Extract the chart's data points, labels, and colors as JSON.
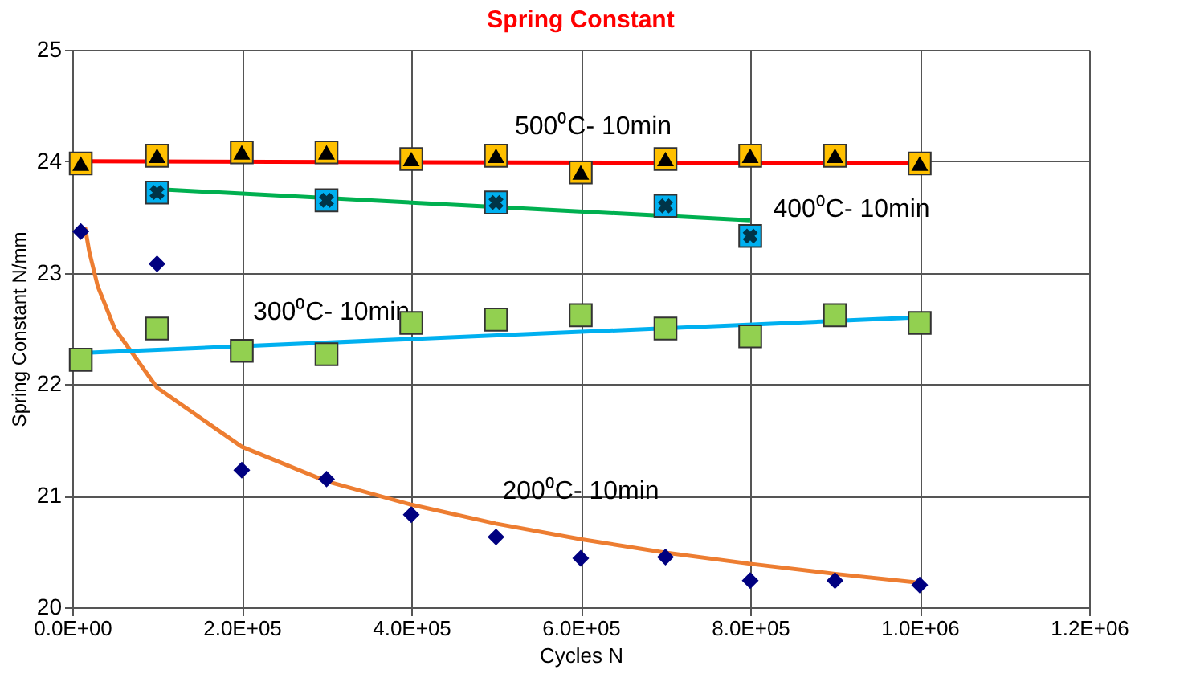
{
  "chart_data": {
    "type": "scatter",
    "title": "Spring Constant",
    "xlabel": "Cycles N",
    "ylabel": "Spring Constant N/mm",
    "xlim": [
      0,
      1200000
    ],
    "ylim": [
      20,
      25
    ],
    "xticks": [
      {
        "value": 0,
        "label": "0.0E+00"
      },
      {
        "value": 200000,
        "label": "2.0E+05"
      },
      {
        "value": 400000,
        "label": "4.0E+05"
      },
      {
        "value": 600000,
        "label": "6.0E+05"
      },
      {
        "value": 800000,
        "label": "8.0E+05"
      },
      {
        "value": 1000000,
        "label": "1.0E+06"
      },
      {
        "value": 1200000,
        "label": "1.2E+06"
      }
    ],
    "yticks": [
      20,
      21,
      22,
      23,
      24,
      25
    ],
    "grid": true,
    "series": [
      {
        "type": "line",
        "name": "200⁰C- 10min",
        "color": "#ed7d31",
        "marker": "none",
        "x": [
          15000,
          20000,
          30000,
          50000,
          100000,
          200000,
          300000,
          400000,
          500000,
          600000,
          700000,
          800000,
          900000,
          1000000
        ],
        "values": [
          23.41,
          23.19,
          22.88,
          22.5,
          21.97,
          21.44,
          21.13,
          20.92,
          20.75,
          20.61,
          20.49,
          20.39,
          20.3,
          20.22
        ]
      },
      {
        "type": "line",
        "name": "300⁰C- 10min",
        "color": "#00b0f0",
        "marker": "none",
        "x": [
          10000,
          1000000
        ],
        "values": [
          22.28,
          22.6
        ]
      },
      {
        "type": "line",
        "name": "400⁰C- 10min",
        "color": "#00b050",
        "marker": "none",
        "x": [
          100000,
          800000
        ],
        "values": [
          23.75,
          23.47
        ]
      },
      {
        "type": "line",
        "name": "500⁰C- 10min",
        "color": "#ff0000",
        "marker": "none",
        "x": [
          10000,
          1000000
        ],
        "values": [
          24.0,
          23.98
        ]
      },
      {
        "color": "#000080",
        "marker": "diamond",
        "x": [
          10000,
          100000,
          200000,
          300000,
          400000,
          500000,
          600000,
          700000,
          800000,
          900000,
          1000000
        ],
        "values": [
          23.37,
          23.08,
          21.23,
          21.15,
          20.83,
          20.63,
          20.44,
          20.45,
          20.24,
          20.24,
          20.2
        ]
      },
      {
        "color": "#92d050",
        "marker": "square",
        "x": [
          10000,
          100000,
          200000,
          300000,
          400000,
          500000,
          600000,
          700000,
          800000,
          900000,
          1000000
        ],
        "values": [
          22.22,
          22.5,
          22.3,
          22.27,
          22.55,
          22.58,
          22.62,
          22.5,
          22.43,
          22.62,
          22.55
        ]
      },
      {
        "color": "#00b0f0",
        "marker": "square",
        "x": [
          100000,
          300000,
          500000,
          700000,
          800000
        ],
        "values": [
          23.72,
          23.65,
          23.63,
          23.6,
          23.33
        ]
      },
      {
        "color": "#000000",
        "marker": "cross",
        "x": [
          100000,
          300000,
          500000,
          700000,
          800000
        ],
        "values": [
          23.72,
          23.65,
          23.63,
          23.6,
          23.33
        ]
      },
      {
        "color": "#ffc000",
        "marker": "square",
        "x": [
          10000,
          100000,
          200000,
          300000,
          400000,
          500000,
          600000,
          700000,
          800000,
          900000,
          1000000
        ],
        "values": [
          23.98,
          24.05,
          24.08,
          24.08,
          24.02,
          24.05,
          23.9,
          24.02,
          24.05,
          24.05,
          23.98
        ]
      },
      {
        "color": "#000000",
        "marker": "triangle",
        "x": [
          10000,
          100000,
          200000,
          300000,
          400000,
          500000,
          600000,
          700000,
          800000,
          900000,
          1000000
        ],
        "values": [
          23.98,
          24.05,
          24.08,
          24.08,
          24.02,
          24.05,
          23.9,
          24.02,
          24.05,
          24.05,
          23.98
        ]
      }
    ]
  }
}
